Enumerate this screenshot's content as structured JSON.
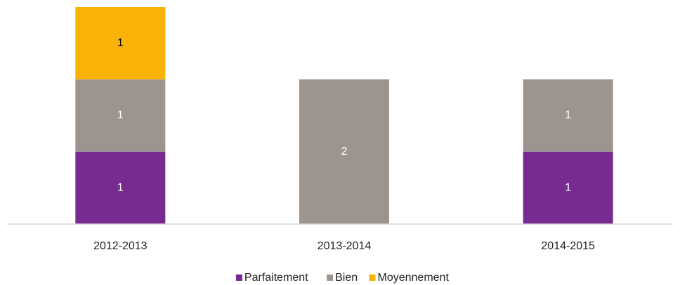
{
  "chart_data": {
    "type": "stacked_bar",
    "categories": [
      "2012-2013",
      "2013-2014",
      "2014-2015"
    ],
    "series": [
      {
        "name": "Parfaitement",
        "color": "#772b90",
        "values": [
          1,
          0,
          1
        ]
      },
      {
        "name": "Bien",
        "color": "#9c958f",
        "values": [
          1,
          2,
          1
        ]
      },
      {
        "name": "Moyennement",
        "color": "#f9b208",
        "values": [
          1,
          0,
          0
        ]
      }
    ],
    "ylim": [
      0,
      3
    ],
    "legend": "bottom"
  }
}
